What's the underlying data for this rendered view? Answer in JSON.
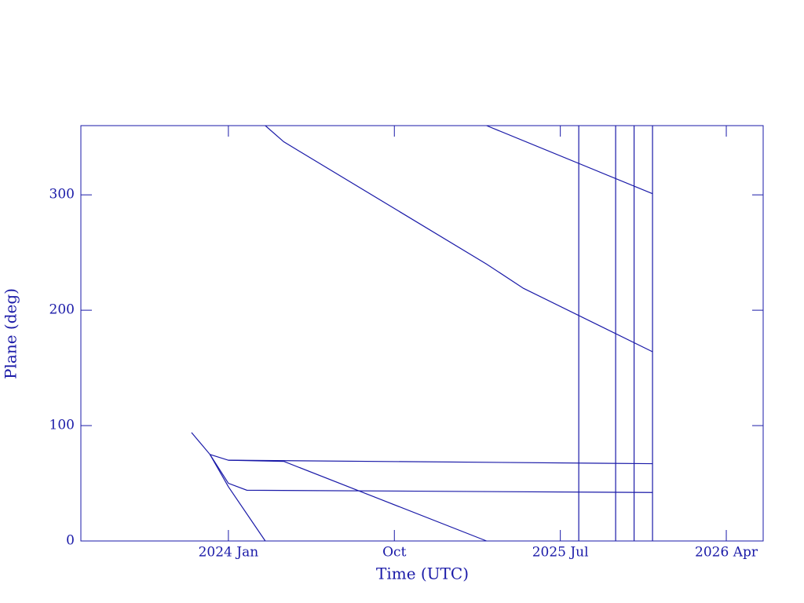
{
  "chart_data": {
    "type": "line",
    "xlabel": "Time (UTC)",
    "ylabel": "Plane (deg)",
    "xlim": [
      "2023-05",
      "2026-06"
    ],
    "xticks": [
      {
        "value": "2024-01",
        "label": "2024 Jan"
      },
      {
        "value": "2024-10",
        "label": "Oct"
      },
      {
        "value": "2025-07",
        "label": "2025 Jul"
      },
      {
        "value": "2026-04",
        "label": "2026 Apr"
      }
    ],
    "ylim": [
      0,
      360
    ],
    "yticks": [
      0,
      100,
      200,
      300
    ],
    "color": "#1a1aa8",
    "series": [
      {
        "color": "#1a1aa8",
        "x": [
          "2023-11",
          "2023-12",
          "2024-01",
          "2024-03"
        ],
        "values": [
          94,
          75,
          47,
          0
        ]
      },
      {
        "color": "#1a1aa8",
        "x": [
          "2023-12",
          "2024-01",
          "2024-02",
          "2025-12"
        ],
        "values": [
          75,
          50,
          44,
          42
        ]
      },
      {
        "color": "#1a1aa8",
        "x": [
          "2023-12",
          "2024-01",
          "2024-04",
          "2025-03"
        ],
        "values": [
          75,
          70,
          69,
          0
        ]
      },
      {
        "color": "#1a1aa8",
        "x": [
          "2024-01",
          "2025-12"
        ],
        "values": [
          70,
          67
        ]
      },
      {
        "color": "#1a1aa8",
        "x": [
          "2024-03",
          "2024-04",
          "2025-03",
          "2025-05",
          "2025-12"
        ],
        "values": [
          360,
          346,
          240,
          219,
          164
        ]
      },
      {
        "color": "#1a1aa8",
        "x": [
          "2025-03",
          "2025-12"
        ],
        "values": [
          360,
          301
        ]
      }
    ],
    "vlines": [
      "2025-08",
      "2025-10",
      "2025-11",
      "2025-12"
    ]
  }
}
